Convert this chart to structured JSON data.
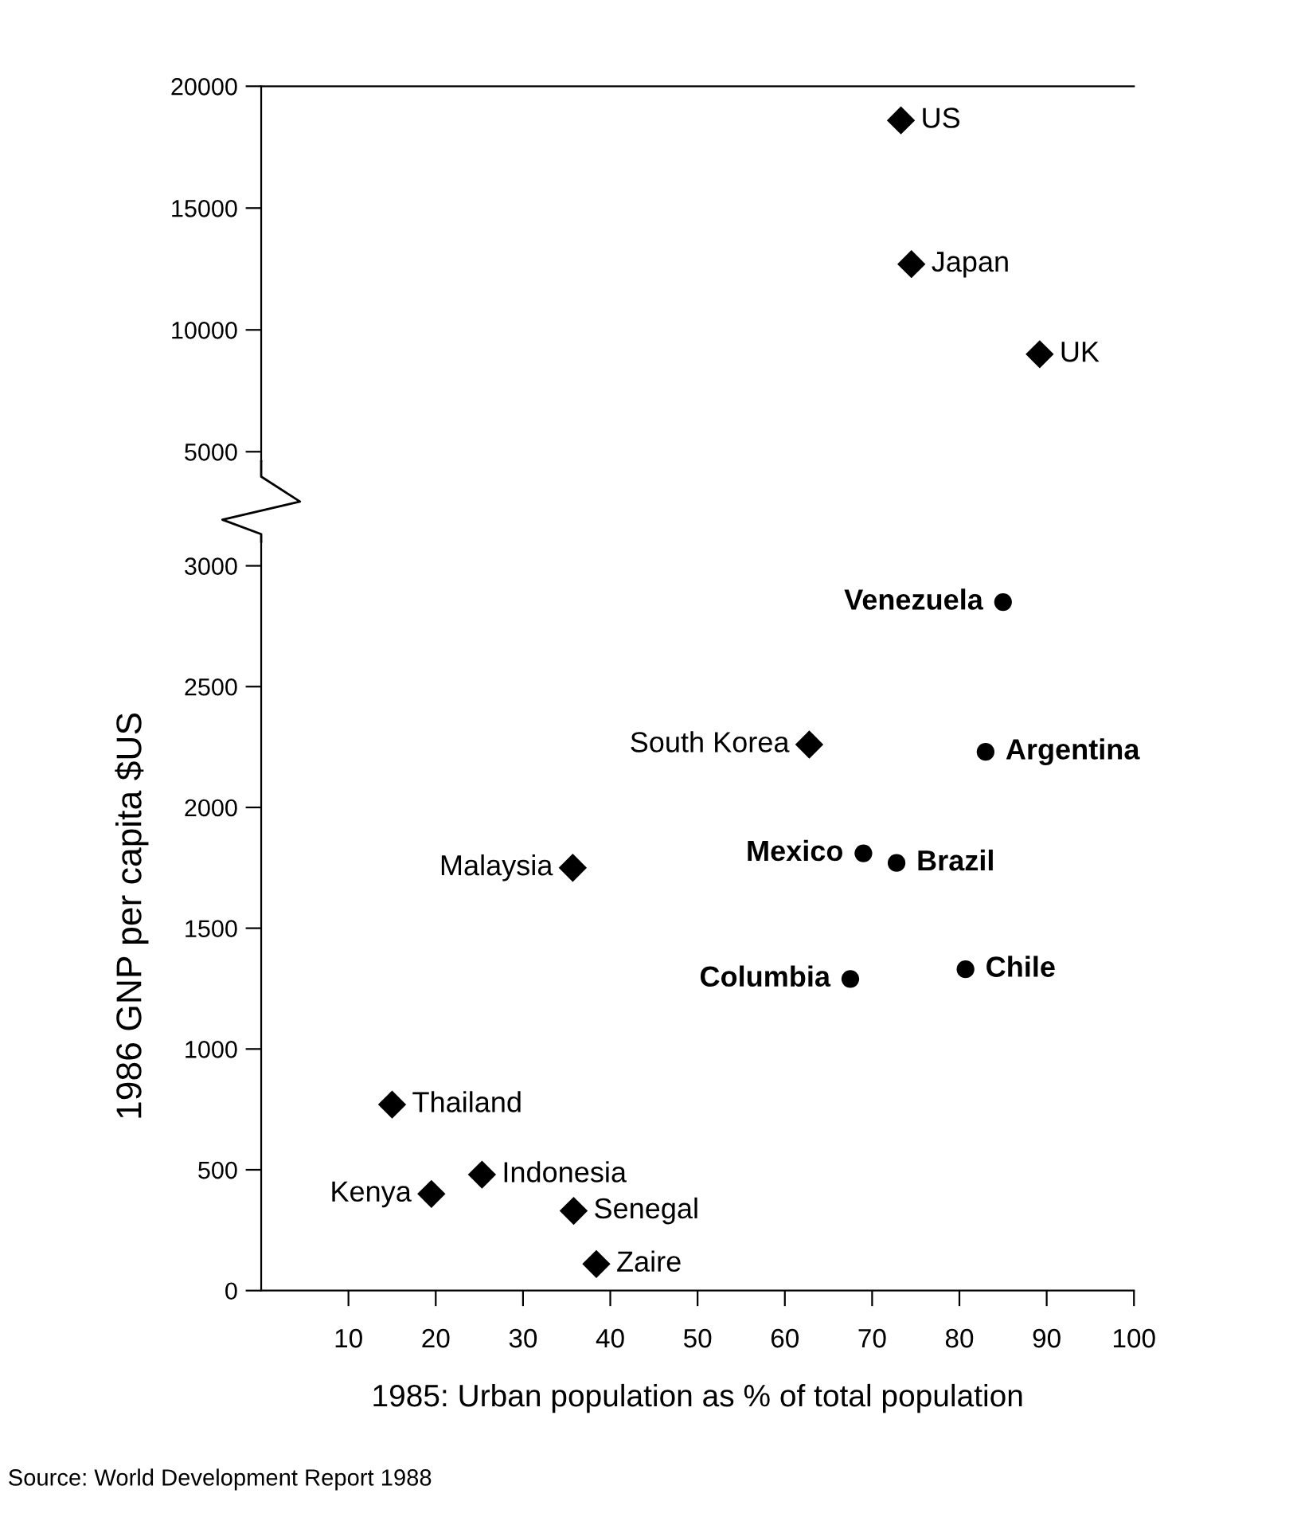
{
  "chart_data": [
    {
      "type": "scatter",
      "xlim": [
        0,
        100
      ],
      "ylim": [
        4600,
        20000
      ],
      "yticks": [
        5000,
        10000,
        15000,
        20000
      ],
      "tick_labels": "y",
      "grid": false,
      "legend": false,
      "series": [
        {
          "color": "#000000",
          "marker": "diamond",
          "x": [
            73.3,
            74.5,
            89.2
          ],
          "values": [
            18600,
            12700,
            9000
          ]
        }
      ],
      "annotations": [
        {
          "text": "US",
          "x": 73.3,
          "y": 18600
        },
        {
          "text": "Japan",
          "x": 74.5,
          "y": 12700
        },
        {
          "text": "UK",
          "x": 89.2,
          "y": 9000
        }
      ]
    },
    {
      "type": "scatter",
      "xlim": [
        0,
        100
      ],
      "xticks": [
        10,
        20,
        30,
        40,
        50,
        60,
        70,
        80,
        90,
        100
      ],
      "ylim": [
        0,
        3100
      ],
      "yticks": [
        0,
        500,
        1000,
        1500,
        2000,
        2500,
        3000
      ],
      "grid": false,
      "legend": false,
      "xlabel": "1985: Urban population as % of total population",
      "ylabel": "1986 GNP per capita $US",
      "series": [
        {
          "color": "#000000",
          "marker": "diamond",
          "x": [
            62.8,
            35.7,
            15.0,
            25.3,
            19.5,
            35.8,
            38.4
          ],
          "values": [
            2260,
            1750,
            770,
            480,
            400,
            330,
            110
          ]
        },
        {
          "color": "#000000",
          "marker": "circle",
          "x": [
            85.0,
            83.0,
            69.0,
            72.8,
            67.5,
            80.7
          ],
          "values": [
            2850,
            2230,
            1810,
            1770,
            1290,
            1330
          ]
        }
      ],
      "annotations": [
        {
          "text": "South Korea",
          "x": 62.8,
          "y": 2260
        },
        {
          "text": "Malaysia",
          "x": 35.7,
          "y": 1750
        },
        {
          "text": "Thailand",
          "x": 15.0,
          "y": 770
        },
        {
          "text": "Indonesia",
          "x": 25.3,
          "y": 480
        },
        {
          "text": "Kenya",
          "x": 19.5,
          "y": 400
        },
        {
          "text": "Senegal",
          "x": 35.8,
          "y": 330
        },
        {
          "text": "Zaire",
          "x": 38.4,
          "y": 110
        },
        {
          "text": "Venezuela",
          "x": 85.0,
          "y": 2850
        },
        {
          "text": "Argentina",
          "x": 83.0,
          "y": 2230
        },
        {
          "text": "Mexico",
          "x": 69.0,
          "y": 1810
        },
        {
          "text": "Brazil",
          "x": 72.8,
          "y": 1770
        },
        {
          "text": "Columbia",
          "x": 67.5,
          "y": 1290
        },
        {
          "text": "Chile",
          "x": 80.7,
          "y": 1330
        },
        "Source: World Development Report 1988"
      ]
    }
  ]
}
